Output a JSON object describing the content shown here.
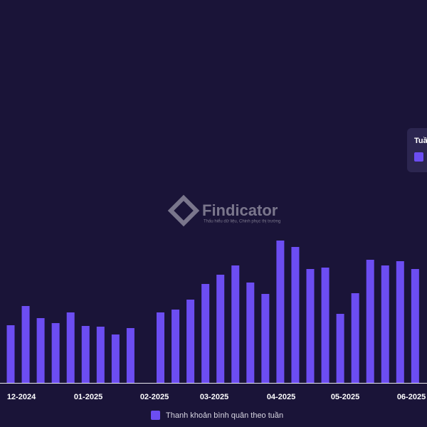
{
  "chart_data": {
    "type": "bar",
    "values": [
      81,
      108,
      91,
      84,
      99,
      80,
      79,
      68,
      77,
      null,
      99,
      103,
      117,
      139,
      152,
      165,
      141,
      125,
      200,
      191,
      160,
      162,
      97,
      126,
      173,
      165,
      171,
      160
    ],
    "color": "#6c4df2",
    "x_labels": [
      "12-2024",
      "01-2025",
      "02-2025",
      "03-2025",
      "04-2025",
      "05-2025",
      "06-2025"
    ],
    "legend": "Thanh khoản bình quân theo tuần",
    "tooltip_title": "Tuầ",
    "watermark": {
      "name": "Findicator",
      "tagline": "Thấu hiểu dữ liệu, Chinh phục thị trường"
    }
  }
}
